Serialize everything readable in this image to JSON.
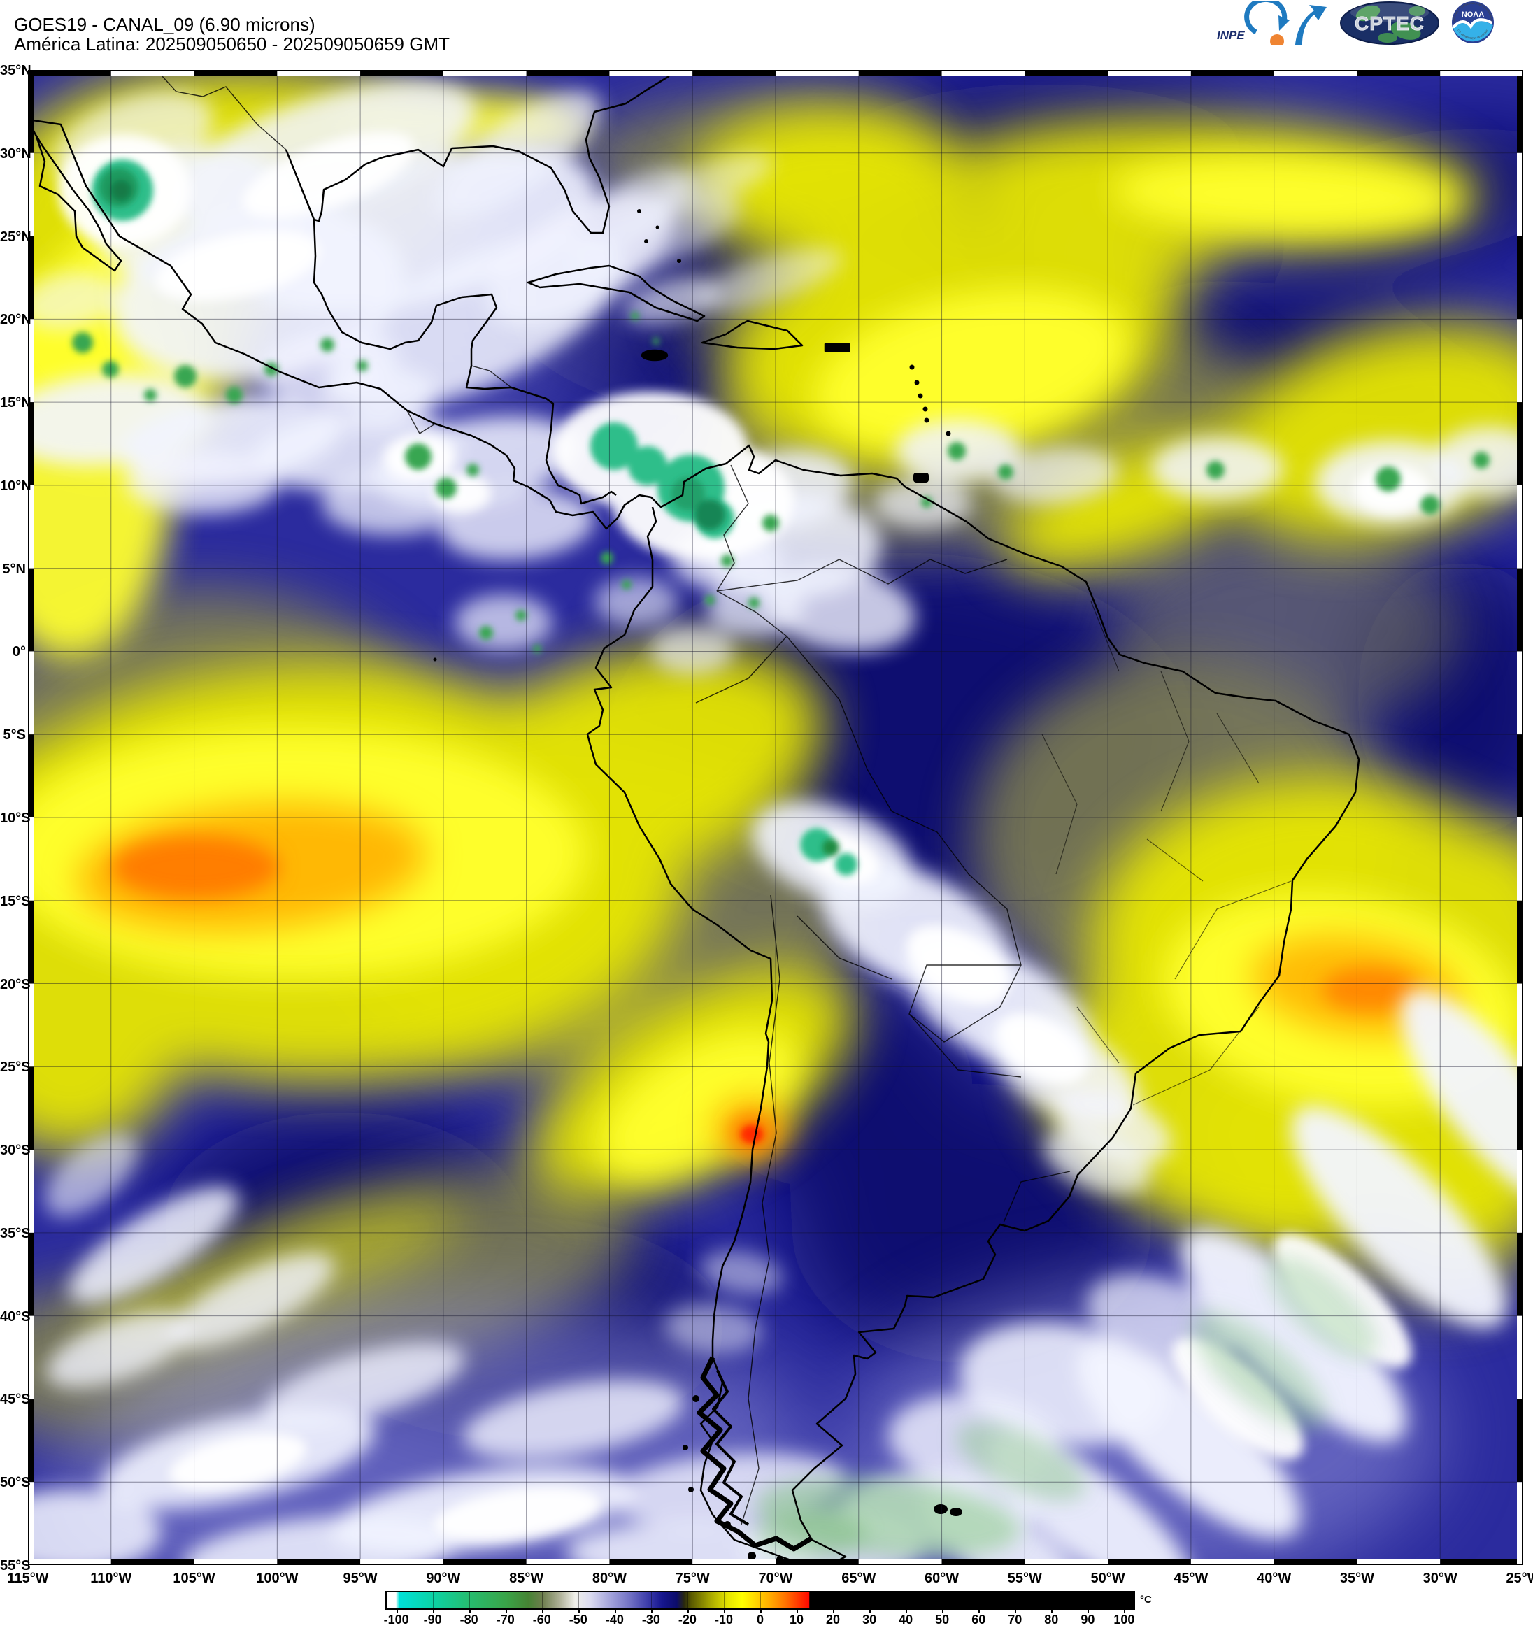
{
  "header": {
    "title_line1": "GOES19 - CANAL_09 (6.90 microns)",
    "title_line2": "América Latina: 202509050650 - 202509050659 GMT"
  },
  "logos": {
    "inpe_label": "INPE",
    "cptec_label": "CPTEC",
    "noaa_label": "NOAA",
    "noaa_rim_top": "NATIONAL OCEANIC AND ATMOSPHERIC ADMINISTRATION",
    "noaa_rim_bottom": "U.S. DEPARTMENT OF COMMERCE"
  },
  "map": {
    "projection_note": "lat/lon grid every 5 degrees",
    "lat_labels": [
      "35°N",
      "30°N",
      "25°N",
      "20°N",
      "15°N",
      "10°N",
      "5°N",
      "0°",
      "5°S",
      "10°S",
      "15°S",
      "20°S",
      "25°S",
      "30°S",
      "35°S",
      "40°S",
      "45°S",
      "50°S",
      "55°S"
    ],
    "lon_labels": [
      "115°W",
      "110°W",
      "105°W",
      "100°W",
      "95°W",
      "90°W",
      "85°W",
      "80°W",
      "75°W",
      "70°W",
      "65°W",
      "60°W",
      "55°W",
      "50°W",
      "45°W",
      "40°W",
      "35°W",
      "30°W",
      "25°W"
    ]
  },
  "colorbar": {
    "unit": "°C",
    "range": [
      -103,
      103
    ],
    "tick_values": [
      -100,
      -90,
      -80,
      -70,
      -60,
      -50,
      -40,
      -30,
      -20,
      -10,
      0,
      10,
      20,
      30,
      40,
      50,
      60,
      70,
      80,
      90,
      100
    ],
    "stops": [
      {
        "v": -103,
        "c": "#ffffff"
      },
      {
        "v": -100.5,
        "c": "#ffffff"
      },
      {
        "v": -99.5,
        "c": "#00e0d8"
      },
      {
        "v": -90,
        "c": "#0cd2a4"
      },
      {
        "v": -80,
        "c": "#27bc6e"
      },
      {
        "v": -70,
        "c": "#3aa448"
      },
      {
        "v": -64,
        "c": "#468434"
      },
      {
        "v": -60,
        "c": "#6e7e4e"
      },
      {
        "v": -55,
        "c": "#b2b49c"
      },
      {
        "v": -51,
        "c": "#f0f0ea"
      },
      {
        "v": -47,
        "c": "#dcdcf0"
      },
      {
        "v": -42,
        "c": "#aaaade"
      },
      {
        "v": -36,
        "c": "#7272c4"
      },
      {
        "v": -31,
        "c": "#3c3caa"
      },
      {
        "v": -27,
        "c": "#16168e"
      },
      {
        "v": -23,
        "c": "#0c0c6a"
      },
      {
        "v": -21,
        "c": "#28280e"
      },
      {
        "v": -19,
        "c": "#5a5a00"
      },
      {
        "v": -14,
        "c": "#a4a400"
      },
      {
        "v": -9,
        "c": "#e4e400"
      },
      {
        "v": -5,
        "c": "#ffff00"
      },
      {
        "v": -1,
        "c": "#ffd400"
      },
      {
        "v": 3,
        "c": "#ffa800"
      },
      {
        "v": 7,
        "c": "#ff7200"
      },
      {
        "v": 11,
        "c": "#ff3000"
      },
      {
        "v": 13.5,
        "c": "#ff0800"
      },
      {
        "v": 13.6,
        "c": "#000000"
      },
      {
        "v": 103,
        "c": "#000000"
      }
    ]
  }
}
